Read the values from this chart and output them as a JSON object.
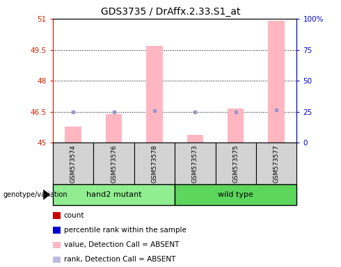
{
  "title": "GDS3735 / DrAffx.2.33.S1_at",
  "samples": [
    "GSM573574",
    "GSM573576",
    "GSM573578",
    "GSM573573",
    "GSM573575",
    "GSM573577"
  ],
  "groups": [
    {
      "label": "hand2 mutant",
      "indices": [
        0,
        1,
        2
      ],
      "color": "#90EE90"
    },
    {
      "label": "wild type",
      "indices": [
        3,
        4,
        5
      ],
      "color": "#5CD65C"
    }
  ],
  "ylim_left": [
    45,
    51
  ],
  "ylim_right": [
    0,
    100
  ],
  "yticks_left": [
    45,
    46.5,
    48,
    49.5,
    51
  ],
  "yticks_right": [
    0,
    25,
    50,
    75,
    100
  ],
  "ytick_labels_left": [
    "45",
    "46.5",
    "48",
    "49.5",
    "51"
  ],
  "ytick_labels_right": [
    "0",
    "25",
    "50",
    "75",
    "100%"
  ],
  "pink_bar_values": [
    45.8,
    46.4,
    49.7,
    45.4,
    46.65,
    50.9
  ],
  "blue_dot_values": [
    46.5,
    46.5,
    46.55,
    46.5,
    46.5,
    46.58
  ],
  "pink_bar_color": "#FFB6C1",
  "blue_dot_color": "#9999CC",
  "baseline": 45,
  "grid_dotted_values": [
    46.5,
    48,
    49.5
  ],
  "legend_items": [
    {
      "label": "count",
      "color": "#CC0000"
    },
    {
      "label": "percentile rank within the sample",
      "color": "#0000CC"
    },
    {
      "label": "value, Detection Call = ABSENT",
      "color": "#FFB6C1"
    },
    {
      "label": "rank, Detection Call = ABSENT",
      "color": "#BBBBDD"
    }
  ],
  "genotype_label": "genotype/variation",
  "left_axis_color": "#CC2200",
  "right_axis_color": "#0000CC",
  "sample_box_color": "#D3D3D3",
  "group1_color": "#90EE90",
  "group2_color": "#5CD65C"
}
